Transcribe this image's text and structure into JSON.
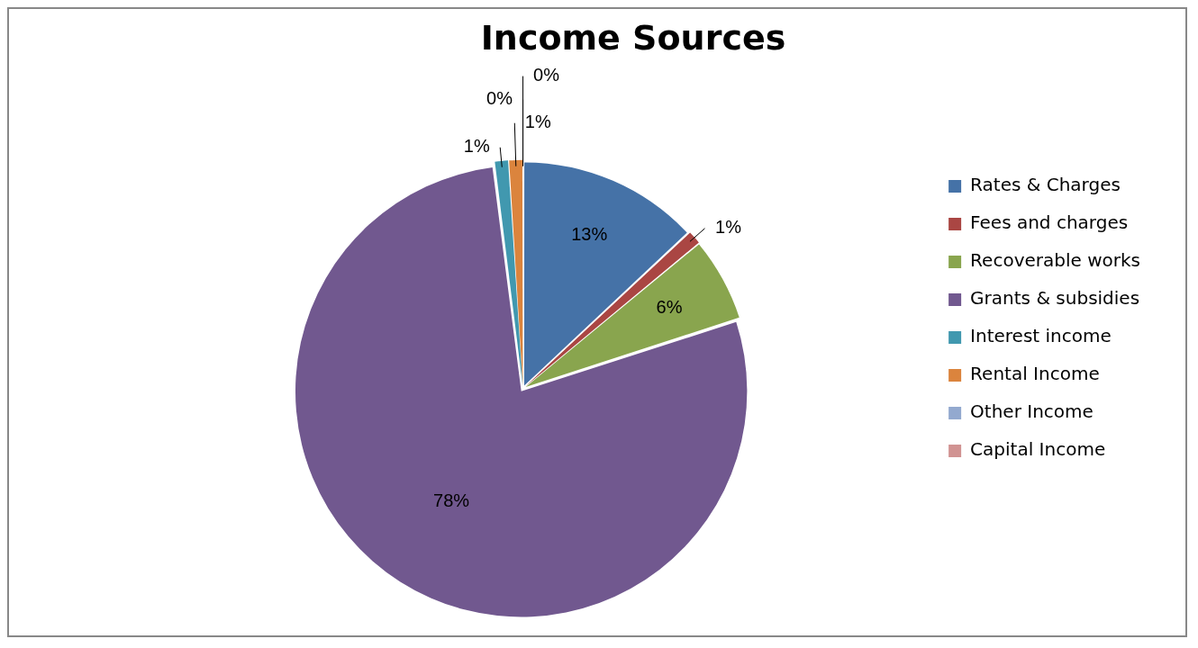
{
  "chart_data": {
    "type": "pie",
    "title": "Income Sources",
    "categories": [
      "Rates & Charges",
      "Fees and charges",
      "Recoverable works",
      "Grants & subsidies",
      "Interest income",
      "Rental Income",
      "Other Income",
      "Capital Income"
    ],
    "values": [
      13,
      1,
      6,
      78,
      1,
      1,
      0,
      0
    ],
    "value_labels": [
      "13%",
      "1%",
      "6%",
      "78%",
      "1%",
      "1%",
      "0%",
      "0%"
    ],
    "colors": [
      "#4572a7",
      "#aa4643",
      "#89a54e",
      "#71588f",
      "#4198af",
      "#db843d",
      "#93a9cf",
      "#d19392"
    ],
    "legend": "right"
  }
}
